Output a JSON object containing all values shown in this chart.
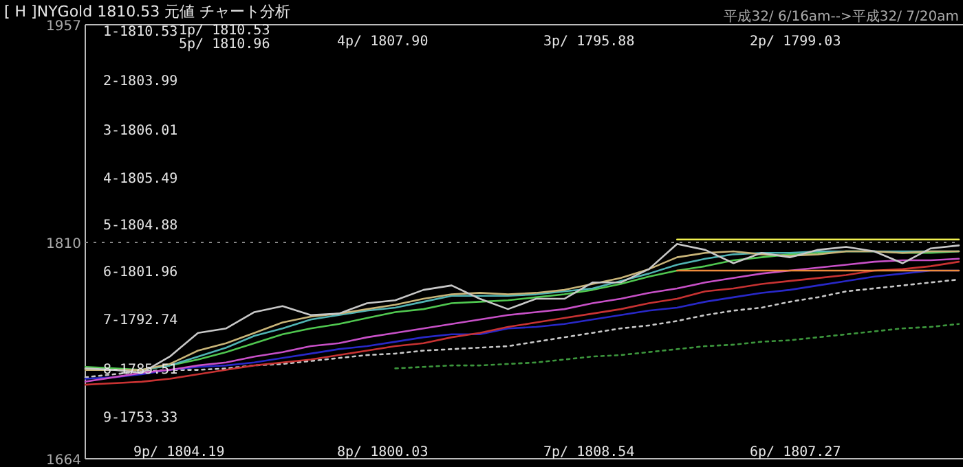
{
  "chart_data": {
    "type": "line",
    "title": "[ H ]NYGold  1810.53  元値  チャート分析",
    "subtitle": "平成32/ 6/16am-->平成32/ 7/20am",
    "categories": [
      null,
      null,
      null,
      null,
      null,
      null,
      null,
      null,
      null,
      null,
      null,
      null,
      null,
      null,
      null,
      null,
      null,
      null,
      null,
      null,
      null,
      null,
      null,
      null,
      null,
      null,
      null,
      null,
      null,
      null,
      null,
      null
    ],
    "ylim": [
      1664,
      1957
    ],
    "yticks": [
      1664,
      1810,
      1957
    ],
    "grid": "y",
    "series": [
      {
        "color": "#3c963c",
        "line_style": "dotted",
        "values": [
          null,
          null,
          null,
          null,
          null,
          null,
          null,
          null,
          null,
          null,
          null,
          1725,
          1726,
          1727,
          1727,
          1728,
          1729,
          1731,
          1733,
          1734,
          1736,
          1738,
          1740,
          1741,
          1743,
          1744,
          1746,
          1748,
          1750,
          1752,
          1753,
          1755
        ]
      },
      {
        "color": "#c8c8c8",
        "line_style": "dotted",
        "values": [
          1719,
          1721,
          1723,
          1724,
          1724,
          1725,
          1727,
          1728,
          1730,
          1732,
          1734,
          1735,
          1737,
          1738,
          1739,
          1740,
          1743,
          1746,
          1749,
          1752,
          1754,
          1757,
          1761,
          1764,
          1766,
          1770,
          1773,
          1777,
          1779,
          1781,
          1783,
          1785
        ]
      },
      {
        "color": "#2828c8",
        "values": [
          1718,
          1719,
          1721,
          1724,
          1726,
          1727,
          1729,
          1732,
          1735,
          1738,
          1740,
          1743,
          1746,
          1748,
          1748,
          1752,
          1753,
          1755,
          1758,
          1761,
          1764,
          1766,
          1770,
          1773,
          1776,
          1778,
          1781,
          1784,
          1787,
          1789,
          1791,
          1791
        ]
      },
      {
        "color": "#c83232",
        "values": [
          1714,
          1715,
          1716,
          1718,
          1721,
          1724,
          1727,
          1729,
          1731,
          1734,
          1737,
          1740,
          1742,
          1746,
          1749,
          1753,
          1756,
          1759,
          1762,
          1765,
          1769,
          1772,
          1777,
          1779,
          1782,
          1784,
          1786,
          1788,
          1791,
          1792,
          1794,
          1797
        ]
      },
      {
        "color": "#c850c8",
        "values": [
          1716,
          1719,
          1722,
          1724,
          1727,
          1729,
          1733,
          1736,
          1740,
          1742,
          1746,
          1749,
          1752,
          1755,
          1758,
          1761,
          1763,
          1765,
          1769,
          1772,
          1776,
          1779,
          1783,
          1786,
          1789,
          1791,
          1793,
          1795,
          1797,
          1798,
          1798,
          1799
        ]
      },
      {
        "color": "#50c850",
        "values": [
          1726,
          1725,
          1724,
          1727,
          1731,
          1736,
          1742,
          1748,
          1752,
          1755,
          1759,
          1763,
          1765,
          1769,
          1770,
          1771,
          1773,
          1775,
          1778,
          1782,
          1787,
          1791,
          1794,
          1798,
          1800,
          1802,
          1803,
          1804,
          1804,
          1803,
          1803,
          1804
        ]
      },
      {
        "color": "#50b4b4",
        "values": [
          1724,
          1724,
          1724,
          1727,
          1733,
          1739,
          1747,
          1752,
          1758,
          1761,
          1764,
          1766,
          1770,
          1774,
          1774,
          1774,
          1775,
          1777,
          1779,
          1784,
          1789,
          1795,
          1799,
          1802,
          1803,
          1803,
          1804,
          1804,
          1804,
          1804,
          1804,
          1804
        ]
      },
      {
        "color": "#c8b478",
        "values": [
          1724,
          1724,
          1724,
          1728,
          1737,
          1742,
          1749,
          1756,
          1760,
          1762,
          1765,
          1768,
          1772,
          1775,
          1776,
          1775,
          1776,
          1778,
          1782,
          1786,
          1792,
          1800,
          1803,
          1804,
          1802,
          1801,
          1802,
          1804,
          1804,
          1803,
          1804,
          1804
        ]
      },
      {
        "color": "#c8c8c8",
        "values": [
          1725,
          1724,
          1722,
          1733,
          1749,
          1752,
          1763,
          1767,
          1761,
          1762,
          1769,
          1771,
          1778,
          1781,
          1772,
          1765,
          1772,
          1772,
          1783,
          1783,
          1792,
          1809,
          1805,
          1796,
          1803,
          1800,
          1805,
          1807,
          1804,
          1796,
          1806,
          1808
        ]
      },
      {
        "color": "#f0f050",
        "values": [
          null,
          null,
          null,
          null,
          null,
          null,
          null,
          null,
          null,
          null,
          null,
          null,
          null,
          null,
          null,
          null,
          null,
          null,
          null,
          null,
          null,
          1812,
          1812,
          1812,
          1812,
          1812,
          1812,
          1812,
          1812,
          1812,
          1812,
          1812
        ]
      },
      {
        "color": "#f08c3c",
        "values": [
          null,
          null,
          null,
          null,
          null,
          null,
          null,
          null,
          null,
          null,
          null,
          null,
          null,
          null,
          null,
          null,
          null,
          null,
          null,
          null,
          null,
          1791,
          1791,
          1791,
          1791,
          1791,
          1791,
          1791,
          1791,
          1791,
          1791,
          1791
        ]
      }
    ],
    "annotations": [
      "1-1810.53",
      "2-1803.99",
      "3-1806.01",
      "4-1805.49",
      "5-1804.88",
      "6-1801.96",
      "7-1792.74",
      "8-1785.51",
      "9-1753.33",
      "1p/ 1810.53",
      "5p/ 1810.96",
      "4p/ 1807.90",
      "3p/ 1795.88",
      "2p/ 1799.03",
      "9p/ 1804.19",
      "8p/ 1800.03",
      "7p/ 1808.54",
      "6p/ 1807.27"
    ]
  }
}
